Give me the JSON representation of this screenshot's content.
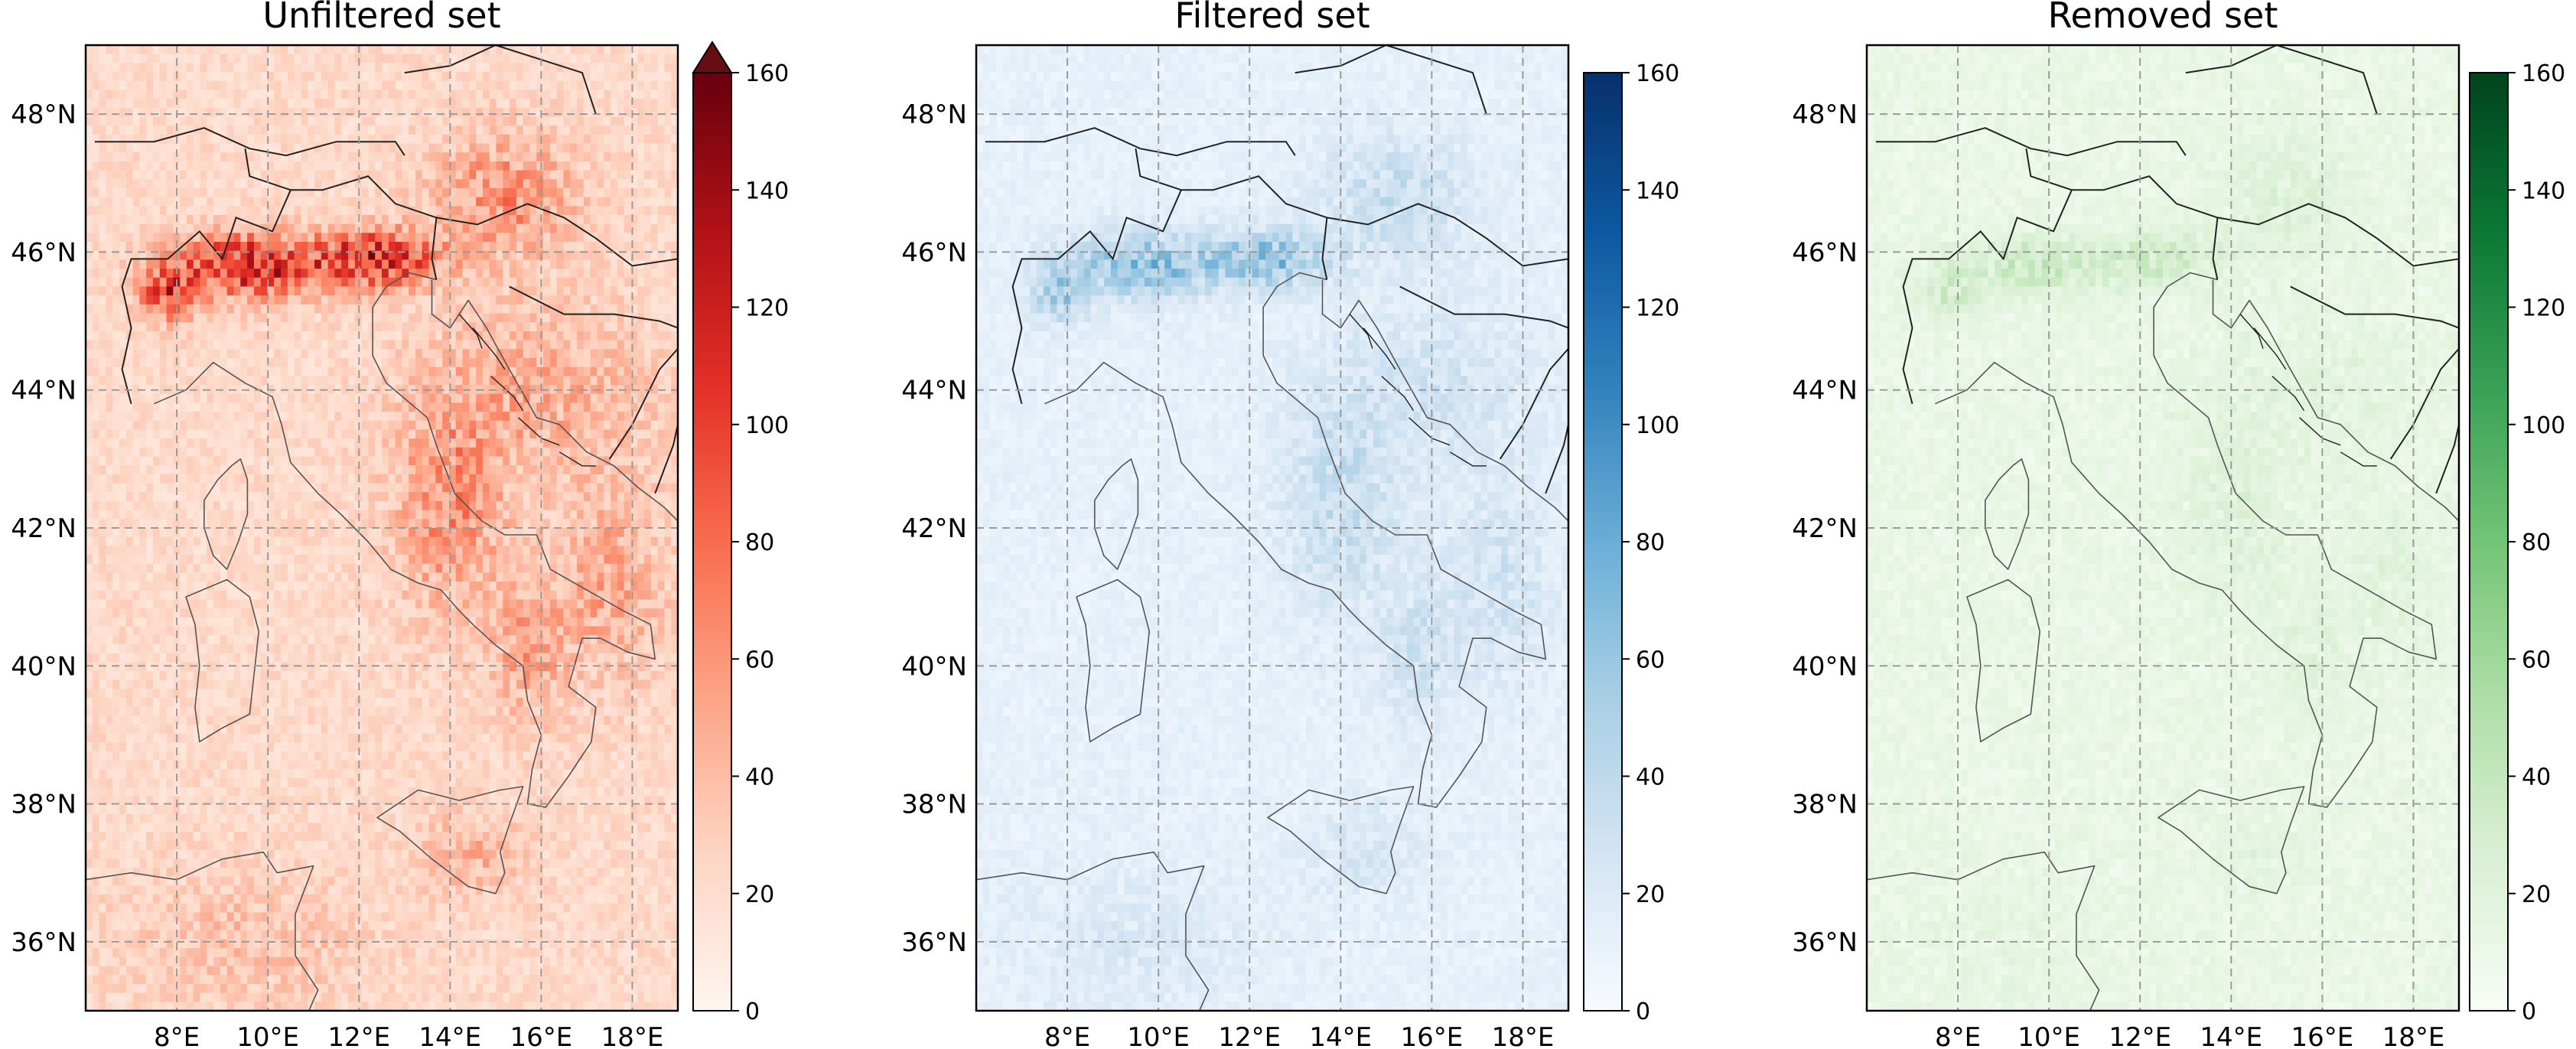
{
  "figure": {
    "panels": [
      {
        "title": "Unfiltered set",
        "colormap": "reds",
        "cmap_colors": [
          "#fff5f0",
          "#fdd5c3",
          "#fca487",
          "#f96c4e",
          "#e32f27",
          "#b11117",
          "#67000d"
        ],
        "extend_arrow_color": "#670d14",
        "colorbar_ticks": [
          "0",
          "20",
          "40",
          "60",
          "80",
          "100",
          "120",
          "140",
          "160"
        ],
        "colorbar_extend": "max",
        "intensity": 1.0
      },
      {
        "title": "Filtered set",
        "colormap": "blues",
        "cmap_colors": [
          "#f7fbff",
          "#d3e4f3",
          "#a9cfe5",
          "#6aaed6",
          "#3181bd",
          "#0c58a0",
          "#08306b"
        ],
        "colorbar_ticks": [
          "0",
          "20",
          "40",
          "60",
          "80",
          "100",
          "120",
          "140",
          "160"
        ],
        "colorbar_extend": "neither",
        "intensity": 0.55
      },
      {
        "title": "Removed set",
        "colormap": "greens",
        "cmap_colors": [
          "#f7fcf5",
          "#d9f0d3",
          "#aedea7",
          "#73c476",
          "#37a055",
          "#0b7734",
          "#00441b"
        ],
        "colorbar_ticks": [
          "0",
          "20",
          "40",
          "60",
          "80",
          "100",
          "120",
          "140",
          "160"
        ],
        "colorbar_extend": "neither",
        "intensity": 0.17
      }
    ],
    "lat_labels": [
      "48°N",
      "46°N",
      "44°N",
      "42°N",
      "40°N",
      "38°N",
      "36°N"
    ],
    "lon_labels": [
      "8°E",
      "10°E",
      "12°E",
      "14°E",
      "16°E",
      "18°E"
    ],
    "colorbar_range": [
      0,
      160
    ]
  },
  "chart_data": {
    "type": "heatmap",
    "projection": "equirectangular",
    "lon_range": [
      6,
      19
    ],
    "lat_range": [
      35,
      49
    ],
    "gridlines": true,
    "gridline_lons": [
      8,
      10,
      12,
      14,
      16,
      18
    ],
    "gridline_lats": [
      36,
      38,
      40,
      42,
      44,
      46,
      48
    ],
    "color_range": [
      0,
      160
    ],
    "panels": [
      {
        "title": "Unfiltered set",
        "cmap": "Reds",
        "extend": "max"
      },
      {
        "title": "Filtered set",
        "cmap": "Blues",
        "extend": "neither"
      },
      {
        "title": "Removed set",
        "cmap": "Greens",
        "extend": "neither"
      }
    ]
  }
}
